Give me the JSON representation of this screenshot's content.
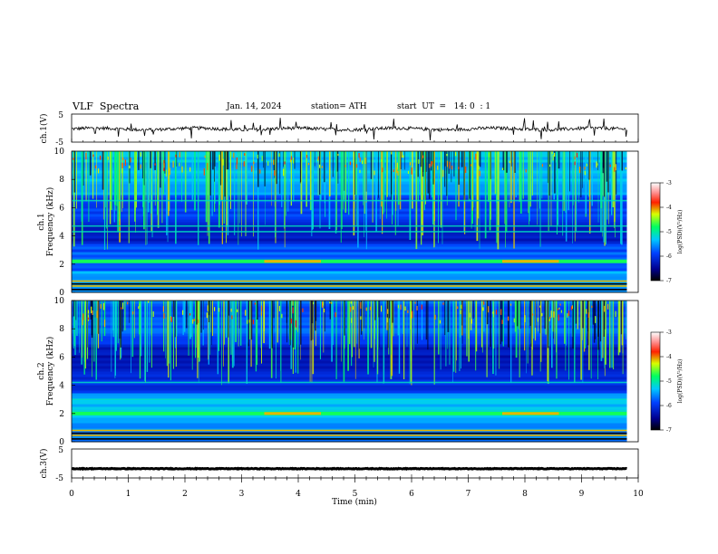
{
  "header": {
    "title": "VLF  Spectra",
    "date": "Jan. 14, 2024",
    "station": "station= ATH",
    "start": "start  UT  =   14: 0  : 1"
  },
  "chart_data": [
    {
      "type": "line",
      "name": "ch1-waveform",
      "ylabel": "ch.1(V)",
      "ylim": [
        -5,
        5
      ],
      "yticks": [
        "5",
        "-5"
      ]
    },
    {
      "type": "heatmap",
      "name": "ch1-spectrogram",
      "ylabel": "ch.1\nFrequency (kHz)",
      "ylim": [
        0,
        10
      ],
      "yticks": [
        "0",
        "2",
        "4",
        "6",
        "8",
        "10"
      ],
      "colorbar": {
        "label": "log(PSD)(V²/Hz)",
        "range": [
          -7,
          -3
        ],
        "ticks": [
          "-3",
          "-4",
          "-5",
          "-6",
          "-7"
        ]
      },
      "bands_khz": [
        2.2,
        4.3,
        4.7,
        6.5
      ],
      "highlight_band": {
        "khz": 2.2,
        "segments_min": [
          [
            3.4,
            4.4
          ],
          [
            7.6,
            8.6
          ]
        ]
      }
    },
    {
      "type": "heatmap",
      "name": "ch2-spectrogram",
      "ylabel": "ch.2\nFrequency (kHz)",
      "ylim": [
        0,
        10
      ],
      "yticks": [
        "0",
        "2",
        "4",
        "6",
        "8",
        "10"
      ],
      "colorbar": {
        "label": "log(PSD)(V²/Hz)",
        "range": [
          -7,
          -3
        ],
        "ticks": [
          "-3",
          "-4",
          "-5",
          "-6",
          "-7"
        ]
      },
      "bands_khz": [
        2.0,
        2.2,
        3.0,
        4.2
      ],
      "highlight_band": {
        "khz": 2.0,
        "segments_min": [
          [
            3.4,
            4.4
          ],
          [
            7.6,
            8.6
          ]
        ]
      }
    },
    {
      "type": "line",
      "name": "ch3-waveform",
      "ylabel": "ch.3(V)",
      "ylim": [
        -5,
        5
      ],
      "yticks": [
        "5",
        "-5"
      ],
      "level_v": -1.8
    }
  ],
  "xaxis": {
    "label": "Time  (min)",
    "ticks": [
      "0",
      "1",
      "2",
      "3",
      "4",
      "5",
      "6",
      "7",
      "8",
      "9",
      "10"
    ],
    "range": [
      0,
      10
    ],
    "data_end_min": 9.8
  }
}
